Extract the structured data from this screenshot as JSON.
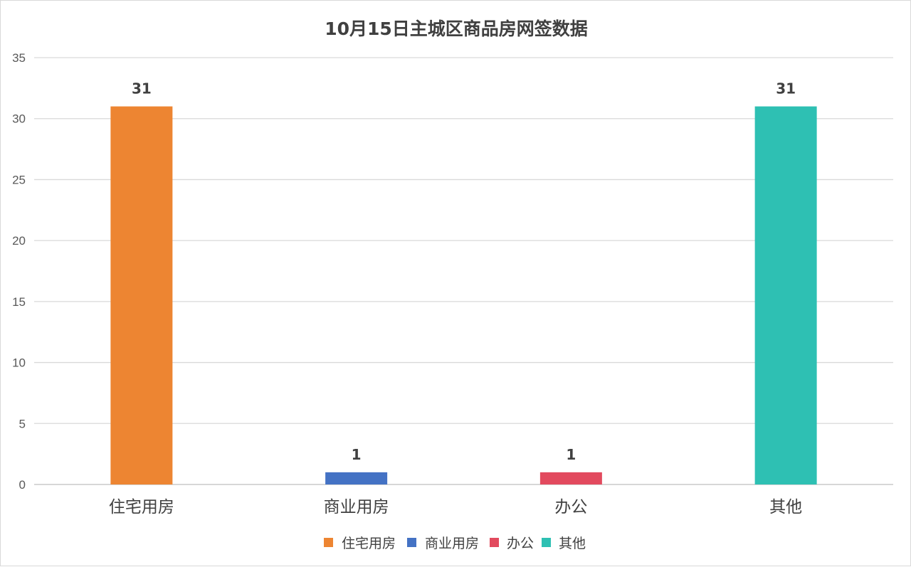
{
  "chart_data": {
    "type": "bar",
    "title": "10月15日主城区商品房网签数据",
    "categories": [
      "住宅用房",
      "商业用房",
      "办公",
      "其他"
    ],
    "values": [
      31,
      1,
      1,
      31
    ],
    "colors": [
      "#ED8532",
      "#4472C4",
      "#E24A5E",
      "#2EC0B3"
    ],
    "ylim": [
      0,
      35
    ],
    "yticks": [
      0,
      5,
      10,
      15,
      20,
      25,
      30,
      35
    ],
    "grid": true,
    "legend_placement": "bottom",
    "legend": [
      "住宅用房",
      "商业用房",
      "办公",
      "其他"
    ],
    "data_labels": [
      "31",
      "1",
      "1",
      "31"
    ]
  }
}
